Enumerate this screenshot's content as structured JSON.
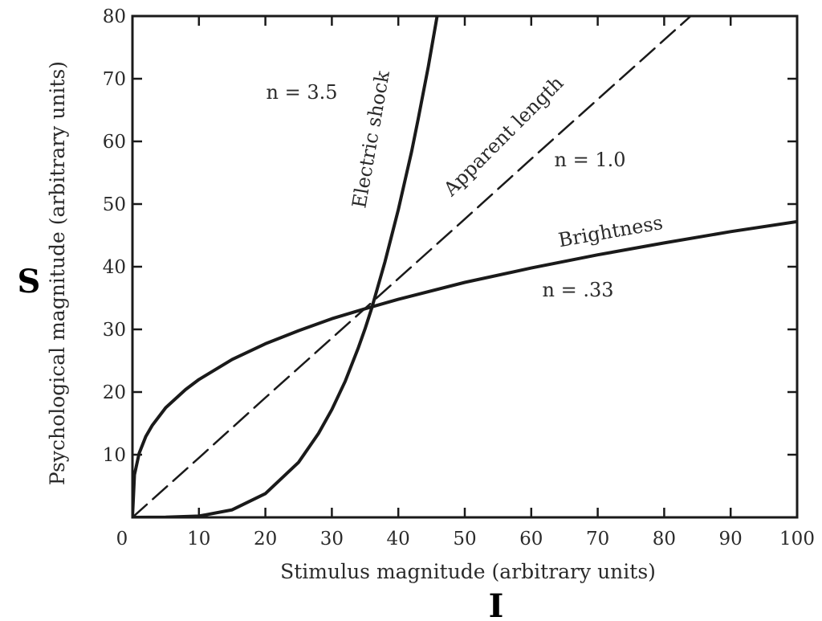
{
  "big_labels": {
    "y": "S",
    "x": "I"
  },
  "chart_data": {
    "type": "line",
    "xlabel": "Stimulus magnitude (arbitrary units)",
    "ylabel": "Psychological magnitude (arbitrary units)",
    "xlim": [
      0,
      100
    ],
    "ylim": [
      0,
      80
    ],
    "x_ticks": [
      10,
      20,
      30,
      40,
      50,
      60,
      70,
      80,
      90,
      100
    ],
    "y_ticks": [
      10,
      20,
      30,
      40,
      50,
      60,
      70,
      80
    ],
    "origin_label": "0",
    "grid": false,
    "series": [
      {
        "name": "Electric shock",
        "exponent_label": "n = 3.5",
        "style": "solid",
        "points": [
          [
            0,
            0
          ],
          [
            5,
            0.02
          ],
          [
            10,
            0.2
          ],
          [
            15,
            1.2
          ],
          [
            20,
            3.8
          ],
          [
            25,
            8.8
          ],
          [
            28,
            13.4
          ],
          [
            30,
            17.2
          ],
          [
            32,
            21.7
          ],
          [
            34,
            27.1
          ],
          [
            35,
            30.1
          ],
          [
            36,
            33.4
          ],
          [
            38,
            40.8
          ],
          [
            40,
            49.1
          ],
          [
            42,
            58.4
          ],
          [
            43,
            63.6
          ],
          [
            44.5,
            71.9
          ],
          [
            45.5,
            77.9
          ],
          [
            46,
            81
          ]
        ]
      },
      {
        "name": "Apparent length",
        "exponent_label": "n = 1.0",
        "style": "dashed",
        "points": [
          [
            0,
            0
          ],
          [
            10,
            9.5
          ],
          [
            20,
            19.1
          ],
          [
            30,
            28.6
          ],
          [
            40,
            38.1
          ],
          [
            50,
            47.6
          ],
          [
            60,
            57.2
          ],
          [
            70,
            66.7
          ],
          [
            80,
            76.2
          ],
          [
            84,
            80
          ]
        ]
      },
      {
        "name": "Brightness",
        "exponent_label": "n = .33",
        "style": "solid",
        "points": [
          [
            0,
            0
          ],
          [
            0.3,
            6.8
          ],
          [
            1,
            10.2
          ],
          [
            2,
            12.9
          ],
          [
            3,
            14.7
          ],
          [
            5,
            17.5
          ],
          [
            8,
            20.4
          ],
          [
            10,
            22.0
          ],
          [
            15,
            25.2
          ],
          [
            20,
            27.7
          ],
          [
            25,
            29.8
          ],
          [
            30,
            31.7
          ],
          [
            35,
            33.3
          ],
          [
            40,
            34.8
          ],
          [
            50,
            37.5
          ],
          [
            60,
            39.8
          ],
          [
            70,
            41.9
          ],
          [
            80,
            43.8
          ],
          [
            90,
            45.6
          ],
          [
            100,
            47.2
          ]
        ]
      }
    ]
  }
}
